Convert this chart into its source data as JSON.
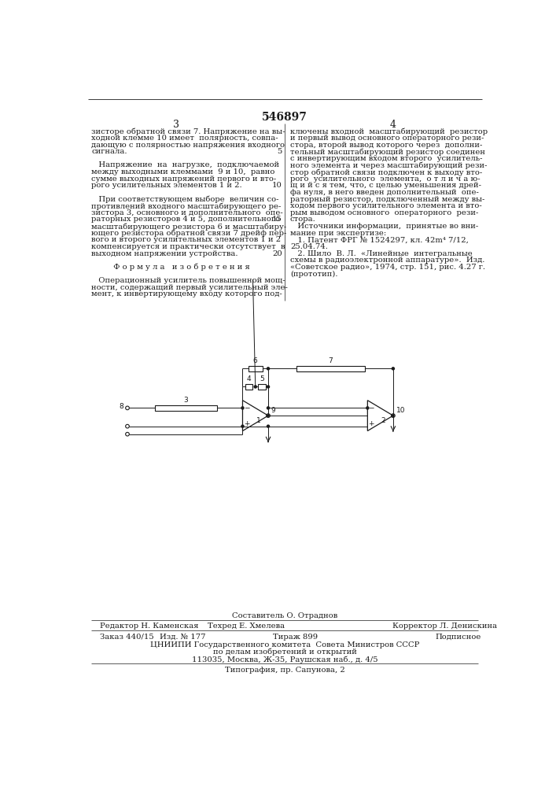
{
  "patent_number": "546897",
  "bg_color": "#ffffff",
  "text_color": "#1a1a1a",
  "line_color": "#1a1a1a",
  "font_size_body": 7.2,
  "footer_line1": "Составитель О. Отраднов",
  "footer_editor": "Редактор Н. Каменская",
  "footer_tech": "Техред Е. Хмелева",
  "footer_corrector": "Корректор Л. Денискина",
  "footer_order": "Заказ 440/15",
  "footer_izd": "Изд. № 177",
  "footer_tirazh": "Тираж 899",
  "footer_podpisnoe": "Подписное",
  "footer_org": "ЦНИИПИ Государственного комитета  Совета Министров СССР",
  "footer_org2": "по делам изобретений и открытий",
  "footer_addr": "113035, Москва, Ж-35, Раушская наб., д. 4/5",
  "footer_print": "Типография, пр. Сапунова, 2",
  "left_col": [
    "зисторе обратной связи 7. Напряжение на вы-",
    "ходной клемме 10 имеет  полярность, совпа-",
    "дающую с полярностью напряжения входного",
    "сигнала.",
    "",
    "   Напряжение  на  нагрузке,  подключаемой",
    "между выходными клеммами  9 и 10,  равно",
    "сумме выходных напряжений первого и вто-",
    "рого усилительных элементов 1 и 2.",
    "",
    "   При соответствующем выборе  величин со-",
    "противлений входного масштабирующего ре-",
    "зистора 3, основного и дополнительного  опе-",
    "раторных резисторов 4 и 5, дополнительного",
    "масштабирующего резистора 6 и масштабиру-",
    "ющего резистора обратной связи 7 дрейф пер-",
    "вого и второго усилительных элементов 1 и 2",
    "компенсируется и практически отсутствует  в",
    "выходном напряжении устройства.",
    "",
    "         Ф о р м у л а   и з о б р е т е н и я",
    "",
    "   Операционный усилитель повышенной мощ-",
    "ности, содержащий первый усилительный эле-",
    "мент, к инвертирующему входу которого под-"
  ],
  "right_col": [
    "ключены входной  масштабирующий  резистор",
    "и первый вывод основного операторного рези-",
    "стора, второй вывод которого через  дополни-",
    "тельный масштабирующий резистор соединен",
    "с инвертирующим входом второго  усилитель-",
    "ного элемента и через масштабирующий рези-",
    "стор обратной связи подключен к выходу вто-",
    "рого  усилительного  элемента,  о т л и ч а ю-",
    "щ и й с я тем, что, с целью уменьшения дрей-",
    "фа нуля, в него введен дополнительный  опе-",
    "раторный резистор, подключенный между вы-",
    "ходом первого усилительного элемента и вто-",
    "рым выводом основного  операторного  рези-",
    "стора.",
    "   Источники информации,  принятые во вни-",
    "мание при экспертизе:",
    "   1. Патент ФРГ № 1524297, кл. 42m⁴ 7/12,",
    "25.04.74.",
    "   2. Шило  В. Л.  «Линейные  интегральные",
    "схемы в радиоэлектронной аппаратуре».  Изд.",
    "«Советское радио», 1974, стр. 151, рис. 4.27 г.",
    "(прототип)."
  ],
  "line_numbers": {
    "3": 5,
    "4": 9,
    "8": 14,
    "9": 19
  }
}
